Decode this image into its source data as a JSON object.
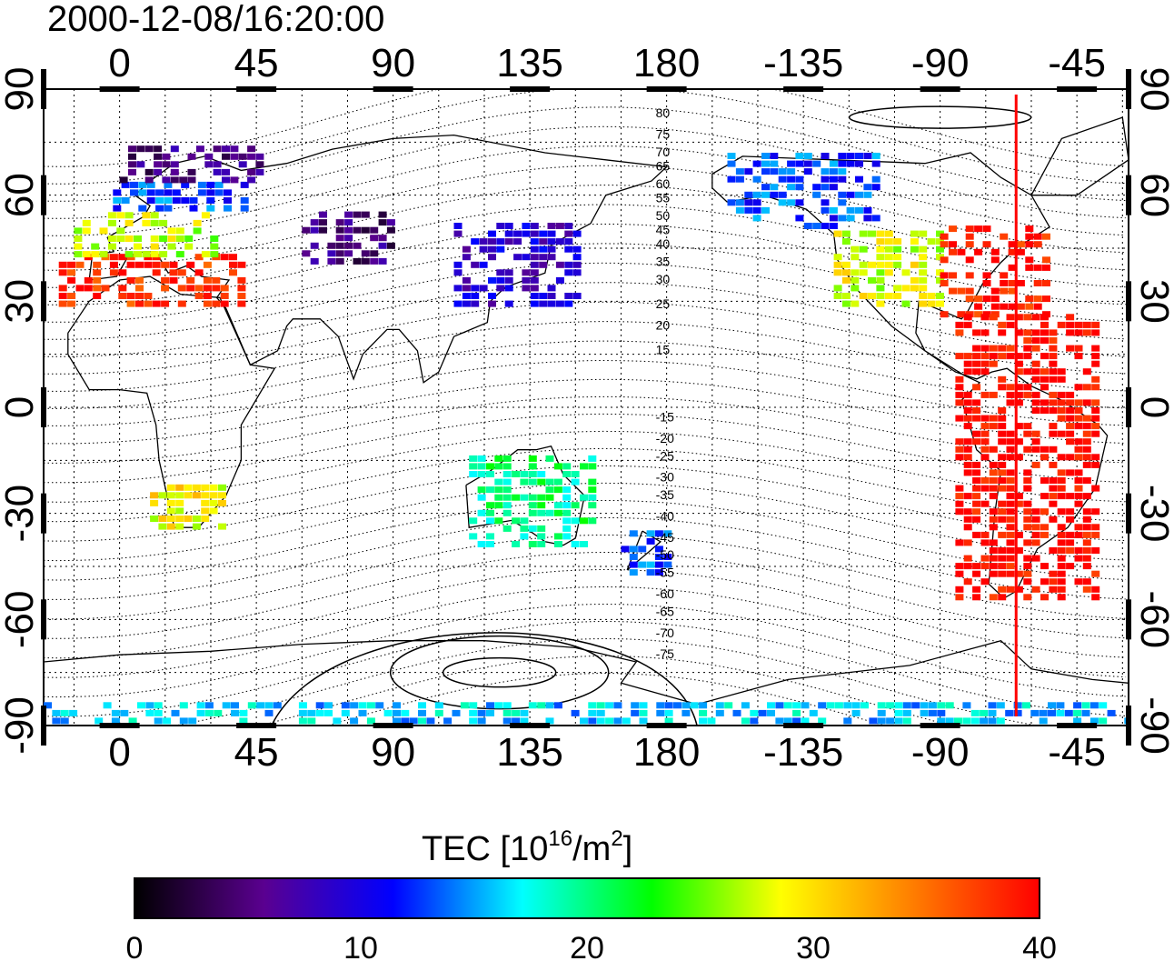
{
  "timestamp": "2000-12-08/16:20:00",
  "map": {
    "x_ticks": [
      {
        "label": "0",
        "lon": 0
      },
      {
        "label": "45",
        "lon": 45
      },
      {
        "label": "90",
        "lon": 90
      },
      {
        "label": "135",
        "lon": 135
      },
      {
        "label": "180",
        "lon": 180
      },
      {
        "label": "-135",
        "lon": 225
      },
      {
        "label": "-90",
        "lon": 270
      },
      {
        "label": "-45",
        "lon": 315
      }
    ],
    "y_ticks": [
      {
        "label": "90",
        "lat": 90
      },
      {
        "label": "60",
        "lat": 60
      },
      {
        "label": "30",
        "lat": 30
      },
      {
        "label": "0",
        "lat": 0
      },
      {
        "label": "-30",
        "lat": -30
      },
      {
        "label": "-60",
        "lat": -60
      },
      {
        "label": "-90",
        "lat": -90
      }
    ],
    "lon_range": [
      -25,
      332
    ],
    "lat_range": [
      -90,
      90
    ],
    "terminator_lon": 295,
    "contour_labels": [
      "80",
      "75",
      "70",
      "65",
      "60",
      "55",
      "50",
      "45",
      "40",
      "35",
      "30",
      "25",
      "20",
      "15",
      "-15",
      "-20",
      "-25",
      "-30",
      "-35",
      "-40",
      "-45",
      "-50",
      "-55",
      "-60",
      "-65",
      "-70",
      "-75"
    ],
    "colors": {
      "terminator": "#ff0000",
      "coast": "#000000"
    }
  },
  "colorbar": {
    "title": "TEC  [10",
    "title_exp": "16",
    "title_mid": "/m",
    "title_exp2": "2",
    "title_end": "]",
    "ticks": [
      "0",
      "10",
      "20",
      "30",
      "40"
    ],
    "min": 0,
    "max": 40,
    "stops": [
      "#000000",
      "#5a0090",
      "#0000ff",
      "#00ffff",
      "#00ff00",
      "#ffff00",
      "#ff8000",
      "#ff0000"
    ]
  },
  "chart_data": {
    "type": "heatmap",
    "title": "2000-12-08/16:20:00",
    "xlabel": "",
    "ylabel": "",
    "colorbar_label": "TEC  [10^16/m^2]",
    "value_range": [
      0,
      40
    ],
    "regions": [
      {
        "lon": [
          -20,
          40
        ],
        "lat": [
          28,
          42
        ],
        "tec": 38
      },
      {
        "lon": [
          -15,
          30
        ],
        "lat": [
          42,
          55
        ],
        "tec": 27
      },
      {
        "lon": [
          -5,
          40
        ],
        "lat": [
          55,
          63
        ],
        "tec": 13
      },
      {
        "lon": [
          0,
          45
        ],
        "lat": [
          63,
          74
        ],
        "tec": 5
      },
      {
        "lon": [
          60,
          90
        ],
        "lat": [
          40,
          55
        ],
        "tec": 5
      },
      {
        "lon": [
          110,
          150
        ],
        "lat": [
          28,
          52
        ],
        "tec": 9
      },
      {
        "lon": [
          200,
          250
        ],
        "lat": [
          50,
          70
        ],
        "tec": 13
      },
      {
        "lon": [
          235,
          270
        ],
        "lat": [
          28,
          50
        ],
        "tec": 28
      },
      {
        "lon": [
          270,
          305
        ],
        "lat": [
          25,
          50
        ],
        "tec": 39
      },
      {
        "lon": [
          275,
          320
        ],
        "lat": [
          -55,
          25
        ],
        "tec": 40
      },
      {
        "lon": [
          10,
          35
        ],
        "lat": [
          -35,
          -22
        ],
        "tec": 29
      },
      {
        "lon": [
          115,
          155
        ],
        "lat": [
          -40,
          -15
        ],
        "tec": 20
      },
      {
        "lon": [
          165,
          180
        ],
        "lat": [
          -48,
          -35
        ],
        "tec": 13
      },
      {
        "lon": [
          -25,
          332
        ],
        "lat": [
          -90,
          -85
        ],
        "tec": 16
      }
    ]
  }
}
